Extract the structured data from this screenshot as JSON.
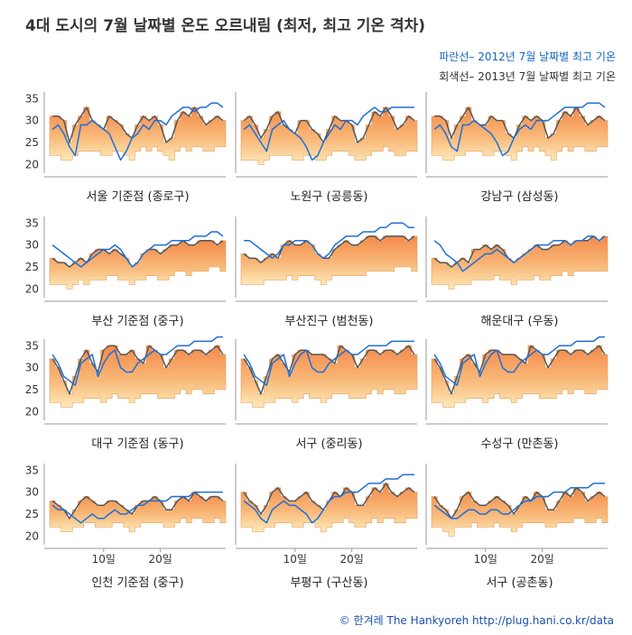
{
  "title": "4대 도시의 7월 날짜별 온도 오르내림 (최저, 최고 기온 격차)",
  "legend": {
    "blue": "파란선– 2012년 7월 날짜별 최고 기온",
    "gray": "회색선– 2013년 7월 날짜별 최고 기온"
  },
  "credit": "© 한겨레 The Hankyoreh http://plug.hani.co.kr/data",
  "colors": {
    "line_2012": "#1f6fd8",
    "line_2013": "#555555",
    "band_top": "#f4894a",
    "band_bottom": "#fde9b8",
    "axis": "#999999"
  },
  "chart_data": {
    "type": "area",
    "description_units": "°C",
    "x": [
      1,
      2,
      3,
      4,
      5,
      6,
      7,
      8,
      9,
      10,
      11,
      12,
      13,
      14,
      15,
      16,
      17,
      18,
      19,
      20,
      21,
      22,
      23,
      24,
      25,
      26,
      27,
      28,
      29,
      30,
      31
    ],
    "yticks": [
      20,
      25,
      30,
      35
    ],
    "xticks": [
      {
        "value": 10,
        "label": "10일"
      },
      {
        "value": 20,
        "label": "20일"
      }
    ],
    "ylim": [
      18,
      36.5
    ],
    "panels": [
      {
        "name": "서울 기준점 (종로구)",
        "max2013": [
          31,
          31,
          30,
          25,
          29,
          31,
          33,
          30,
          29,
          28,
          31,
          30,
          29,
          27,
          26,
          29,
          31,
          30,
          31,
          29,
          25,
          26,
          30,
          32,
          31,
          33,
          31,
          29,
          30,
          31,
          30
        ],
        "min2013": [
          22,
          22,
          21,
          21,
          22,
          23,
          23,
          23,
          23,
          22,
          22,
          23,
          23,
          22,
          21,
          23,
          24,
          23,
          24,
          23,
          22,
          21,
          23,
          24,
          23,
          24,
          24,
          23,
          23,
          24,
          24
        ],
        "max2012": [
          28,
          29,
          27,
          24,
          22,
          29,
          29,
          30,
          29,
          28,
          27,
          24,
          21,
          23,
          26,
          27,
          29,
          28,
          30,
          30,
          29,
          31,
          32,
          33,
          33,
          32,
          33,
          33,
          34,
          34,
          33
        ]
      },
      {
        "name": "노원구 (공릉동)",
        "max2013": [
          30,
          31,
          29,
          26,
          28,
          31,
          32,
          29,
          28,
          27,
          30,
          30,
          28,
          27,
          25,
          28,
          31,
          30,
          30,
          29,
          25,
          26,
          29,
          32,
          31,
          33,
          31,
          28,
          29,
          31,
          30
        ],
        "min2013": [
          21,
          21,
          21,
          20,
          21,
          22,
          22,
          22,
          22,
          21,
          21,
          22,
          22,
          21,
          21,
          22,
          23,
          23,
          23,
          22,
          21,
          21,
          22,
          23,
          23,
          24,
          23,
          22,
          22,
          23,
          23
        ],
        "max2012": [
          28,
          29,
          27,
          25,
          23,
          28,
          29,
          30,
          28,
          27,
          26,
          24,
          21,
          22,
          25,
          27,
          29,
          28,
          30,
          30,
          29,
          31,
          32,
          33,
          32,
          32,
          33,
          33,
          33,
          33,
          33
        ]
      },
      {
        "name": "강남구 (삼성동)",
        "max2013": [
          31,
          31,
          30,
          26,
          29,
          31,
          33,
          30,
          29,
          29,
          31,
          30,
          30,
          27,
          26,
          29,
          31,
          30,
          31,
          30,
          26,
          27,
          30,
          32,
          31,
          33,
          31,
          29,
          30,
          31,
          30
        ],
        "min2013": [
          22,
          22,
          21,
          21,
          22,
          22,
          23,
          23,
          23,
          22,
          22,
          23,
          23,
          22,
          21,
          23,
          24,
          23,
          24,
          23,
          22,
          21,
          23,
          24,
          23,
          24,
          24,
          23,
          23,
          24,
          24
        ],
        "max2012": [
          28,
          29,
          27,
          24,
          23,
          29,
          29,
          30,
          29,
          28,
          27,
          25,
          22,
          23,
          26,
          28,
          29,
          28,
          30,
          30,
          30,
          31,
          32,
          33,
          33,
          33,
          33,
          34,
          34,
          34,
          33
        ]
      },
      {
        "name": "부산 기준점 (중구)",
        "max2013": [
          27,
          26,
          26,
          25,
          26,
          27,
          26,
          28,
          29,
          29,
          28,
          29,
          28,
          27,
          25,
          26,
          28,
          29,
          29,
          28,
          29,
          30,
          30,
          31,
          30,
          30,
          31,
          31,
          31,
          30,
          31
        ],
        "min2013": [
          21,
          21,
          21,
          20,
          21,
          22,
          21,
          22,
          22,
          22,
          23,
          23,
          22,
          22,
          21,
          22,
          22,
          23,
          23,
          22,
          22,
          23,
          24,
          24,
          23,
          24,
          24,
          24,
          25,
          25,
          24
        ],
        "max2012": [
          30,
          29,
          28,
          27,
          26,
          25,
          26,
          27,
          28,
          29,
          29,
          30,
          29,
          27,
          25,
          26,
          28,
          29,
          30,
          30,
          30,
          31,
          31,
          31,
          31,
          32,
          32,
          32,
          33,
          33,
          32
        ]
      },
      {
        "name": "부산진구 (범천동)",
        "max2013": [
          28,
          27,
          27,
          26,
          27,
          28,
          27,
          30,
          31,
          30,
          30,
          31,
          30,
          28,
          27,
          27,
          29,
          30,
          31,
          30,
          30,
          31,
          32,
          32,
          31,
          32,
          32,
          32,
          32,
          31,
          32
        ],
        "min2013": [
          21,
          21,
          21,
          21,
          22,
          22,
          22,
          22,
          23,
          22,
          23,
          23,
          23,
          22,
          21,
          22,
          23,
          23,
          23,
          23,
          23,
          23,
          24,
          24,
          24,
          24,
          24,
          25,
          25,
          25,
          24
        ],
        "max2012": [
          31,
          31,
          30,
          29,
          28,
          27,
          28,
          30,
          30,
          31,
          31,
          31,
          30,
          28,
          27,
          28,
          30,
          31,
          32,
          32,
          32,
          33,
          33,
          33,
          34,
          34,
          35,
          35,
          35,
          34,
          34
        ]
      },
      {
        "name": "해운대구 (우동)",
        "max2013": [
          27,
          26,
          26,
          25,
          26,
          27,
          26,
          29,
          29,
          30,
          29,
          30,
          29,
          27,
          26,
          27,
          28,
          29,
          30,
          29,
          29,
          30,
          30,
          31,
          30,
          31,
          31,
          31,
          32,
          31,
          32
        ],
        "min2013": [
          21,
          21,
          21,
          20,
          21,
          21,
          21,
          22,
          22,
          22,
          22,
          23,
          22,
          22,
          21,
          22,
          22,
          22,
          23,
          22,
          22,
          23,
          23,
          24,
          23,
          24,
          24,
          24,
          24,
          24,
          24
        ],
        "max2012": [
          31,
          30,
          28,
          27,
          26,
          24,
          25,
          26,
          27,
          28,
          28,
          29,
          28,
          27,
          26,
          27,
          28,
          29,
          30,
          30,
          30,
          31,
          31,
          31,
          30,
          31,
          31,
          32,
          32,
          31,
          32
        ]
      },
      {
        "name": "대구 기준점 (동구)",
        "max2013": [
          32,
          30,
          27,
          24,
          28,
          32,
          34,
          31,
          29,
          34,
          35,
          35,
          33,
          33,
          34,
          32,
          31,
          35,
          34,
          33,
          30,
          32,
          34,
          34,
          33,
          34,
          34,
          33,
          34,
          35,
          33
        ],
        "min2013": [
          22,
          22,
          21,
          21,
          22,
          22,
          23,
          23,
          23,
          22,
          23,
          24,
          23,
          23,
          22,
          23,
          24,
          24,
          24,
          23,
          23,
          23,
          24,
          25,
          24,
          25,
          25,
          24,
          24,
          25,
          25
        ],
        "max2012": [
          33,
          31,
          28,
          27,
          26,
          31,
          32,
          33,
          28,
          31,
          33,
          34,
          30,
          29,
          29,
          31,
          32,
          33,
          34,
          33,
          33,
          34,
          35,
          35,
          35,
          36,
          36,
          36,
          36,
          37,
          37
        ]
      },
      {
        "name": "서구 (중리동)",
        "max2013": [
          32,
          30,
          27,
          24,
          28,
          32,
          33,
          31,
          29,
          33,
          34,
          34,
          33,
          33,
          33,
          32,
          31,
          35,
          34,
          33,
          30,
          32,
          34,
          34,
          33,
          34,
          34,
          33,
          34,
          35,
          33
        ],
        "min2013": [
          22,
          22,
          21,
          21,
          22,
          22,
          23,
          23,
          23,
          22,
          23,
          24,
          23,
          23,
          22,
          23,
          24,
          24,
          24,
          23,
          23,
          23,
          24,
          25,
          24,
          25,
          25,
          24,
          24,
          25,
          25
        ],
        "max2012": [
          33,
          31,
          28,
          27,
          26,
          31,
          32,
          33,
          28,
          31,
          33,
          34,
          30,
          29,
          29,
          31,
          32,
          33,
          34,
          33,
          33,
          34,
          35,
          35,
          35,
          35,
          36,
          36,
          36,
          36,
          36
        ]
      },
      {
        "name": "수성구 (만촌동)",
        "max2013": [
          32,
          30,
          27,
          24,
          28,
          32,
          33,
          31,
          29,
          33,
          34,
          34,
          33,
          33,
          33,
          32,
          31,
          35,
          34,
          33,
          30,
          32,
          34,
          34,
          33,
          34,
          34,
          33,
          34,
          35,
          33
        ],
        "min2013": [
          22,
          22,
          21,
          21,
          22,
          22,
          23,
          23,
          23,
          22,
          23,
          24,
          23,
          23,
          22,
          23,
          24,
          24,
          24,
          23,
          23,
          23,
          24,
          25,
          24,
          25,
          25,
          24,
          24,
          25,
          25
        ],
        "max2012": [
          33,
          31,
          28,
          27,
          26,
          31,
          32,
          33,
          28,
          31,
          33,
          34,
          30,
          29,
          29,
          31,
          32,
          33,
          34,
          33,
          33,
          34,
          35,
          35,
          35,
          36,
          36,
          36,
          36,
          37,
          37
        ]
      },
      {
        "name": "인천 기준점 (중구)",
        "max2013": [
          28,
          27,
          26,
          24,
          26,
          28,
          29,
          28,
          27,
          27,
          28,
          28,
          27,
          26,
          25,
          27,
          28,
          28,
          29,
          28,
          26,
          26,
          28,
          29,
          28,
          30,
          29,
          28,
          29,
          29,
          28
        ],
        "min2013": [
          22,
          22,
          21,
          21,
          22,
          22,
          23,
          23,
          22,
          22,
          22,
          23,
          23,
          22,
          21,
          22,
          23,
          23,
          23,
          23,
          22,
          22,
          23,
          24,
          23,
          24,
          24,
          23,
          23,
          24,
          23
        ],
        "max2012": [
          27,
          26,
          26,
          25,
          24,
          23,
          24,
          25,
          24,
          24,
          25,
          26,
          25,
          25,
          26,
          27,
          27,
          28,
          28,
          28,
          28,
          29,
          29,
          29,
          29,
          30,
          30,
          30,
          30,
          30,
          30
        ]
      },
      {
        "name": "부평구 (구산동)",
        "max2013": [
          30,
          28,
          27,
          25,
          27,
          30,
          31,
          29,
          28,
          28,
          29,
          30,
          28,
          27,
          26,
          28,
          30,
          29,
          31,
          30,
          27,
          27,
          29,
          31,
          30,
          32,
          30,
          29,
          30,
          31,
          30
        ],
        "min2013": [
          22,
          22,
          21,
          21,
          22,
          22,
          23,
          23,
          23,
          22,
          22,
          23,
          23,
          22,
          21,
          22,
          23,
          23,
          24,
          23,
          22,
          22,
          23,
          24,
          23,
          24,
          24,
          23,
          23,
          24,
          24
        ],
        "max2012": [
          28,
          27,
          26,
          24,
          23,
          26,
          27,
          28,
          27,
          27,
          26,
          25,
          23,
          24,
          26,
          28,
          29,
          29,
          30,
          30,
          30,
          31,
          32,
          32,
          32,
          33,
          33,
          33,
          34,
          34,
          34
        ]
      },
      {
        "name": "서구 (공촌동)",
        "max2013": [
          29,
          27,
          26,
          24,
          26,
          29,
          30,
          28,
          27,
          27,
          28,
          29,
          28,
          27,
          25,
          27,
          29,
          28,
          30,
          29,
          26,
          26,
          28,
          30,
          29,
          31,
          30,
          28,
          29,
          30,
          29
        ],
        "min2013": [
          22,
          22,
          21,
          20,
          22,
          22,
          22,
          23,
          22,
          22,
          22,
          23,
          22,
          22,
          21,
          22,
          23,
          23,
          23,
          23,
          22,
          22,
          23,
          23,
          23,
          24,
          24,
          23,
          23,
          24,
          23
        ],
        "max2012": [
          27,
          26,
          25,
          24,
          24,
          25,
          26,
          26,
          25,
          25,
          26,
          26,
          25,
          25,
          26,
          27,
          28,
          28,
          29,
          29,
          29,
          30,
          30,
          30,
          31,
          31,
          31,
          31,
          32,
          32,
          32
        ]
      }
    ]
  }
}
